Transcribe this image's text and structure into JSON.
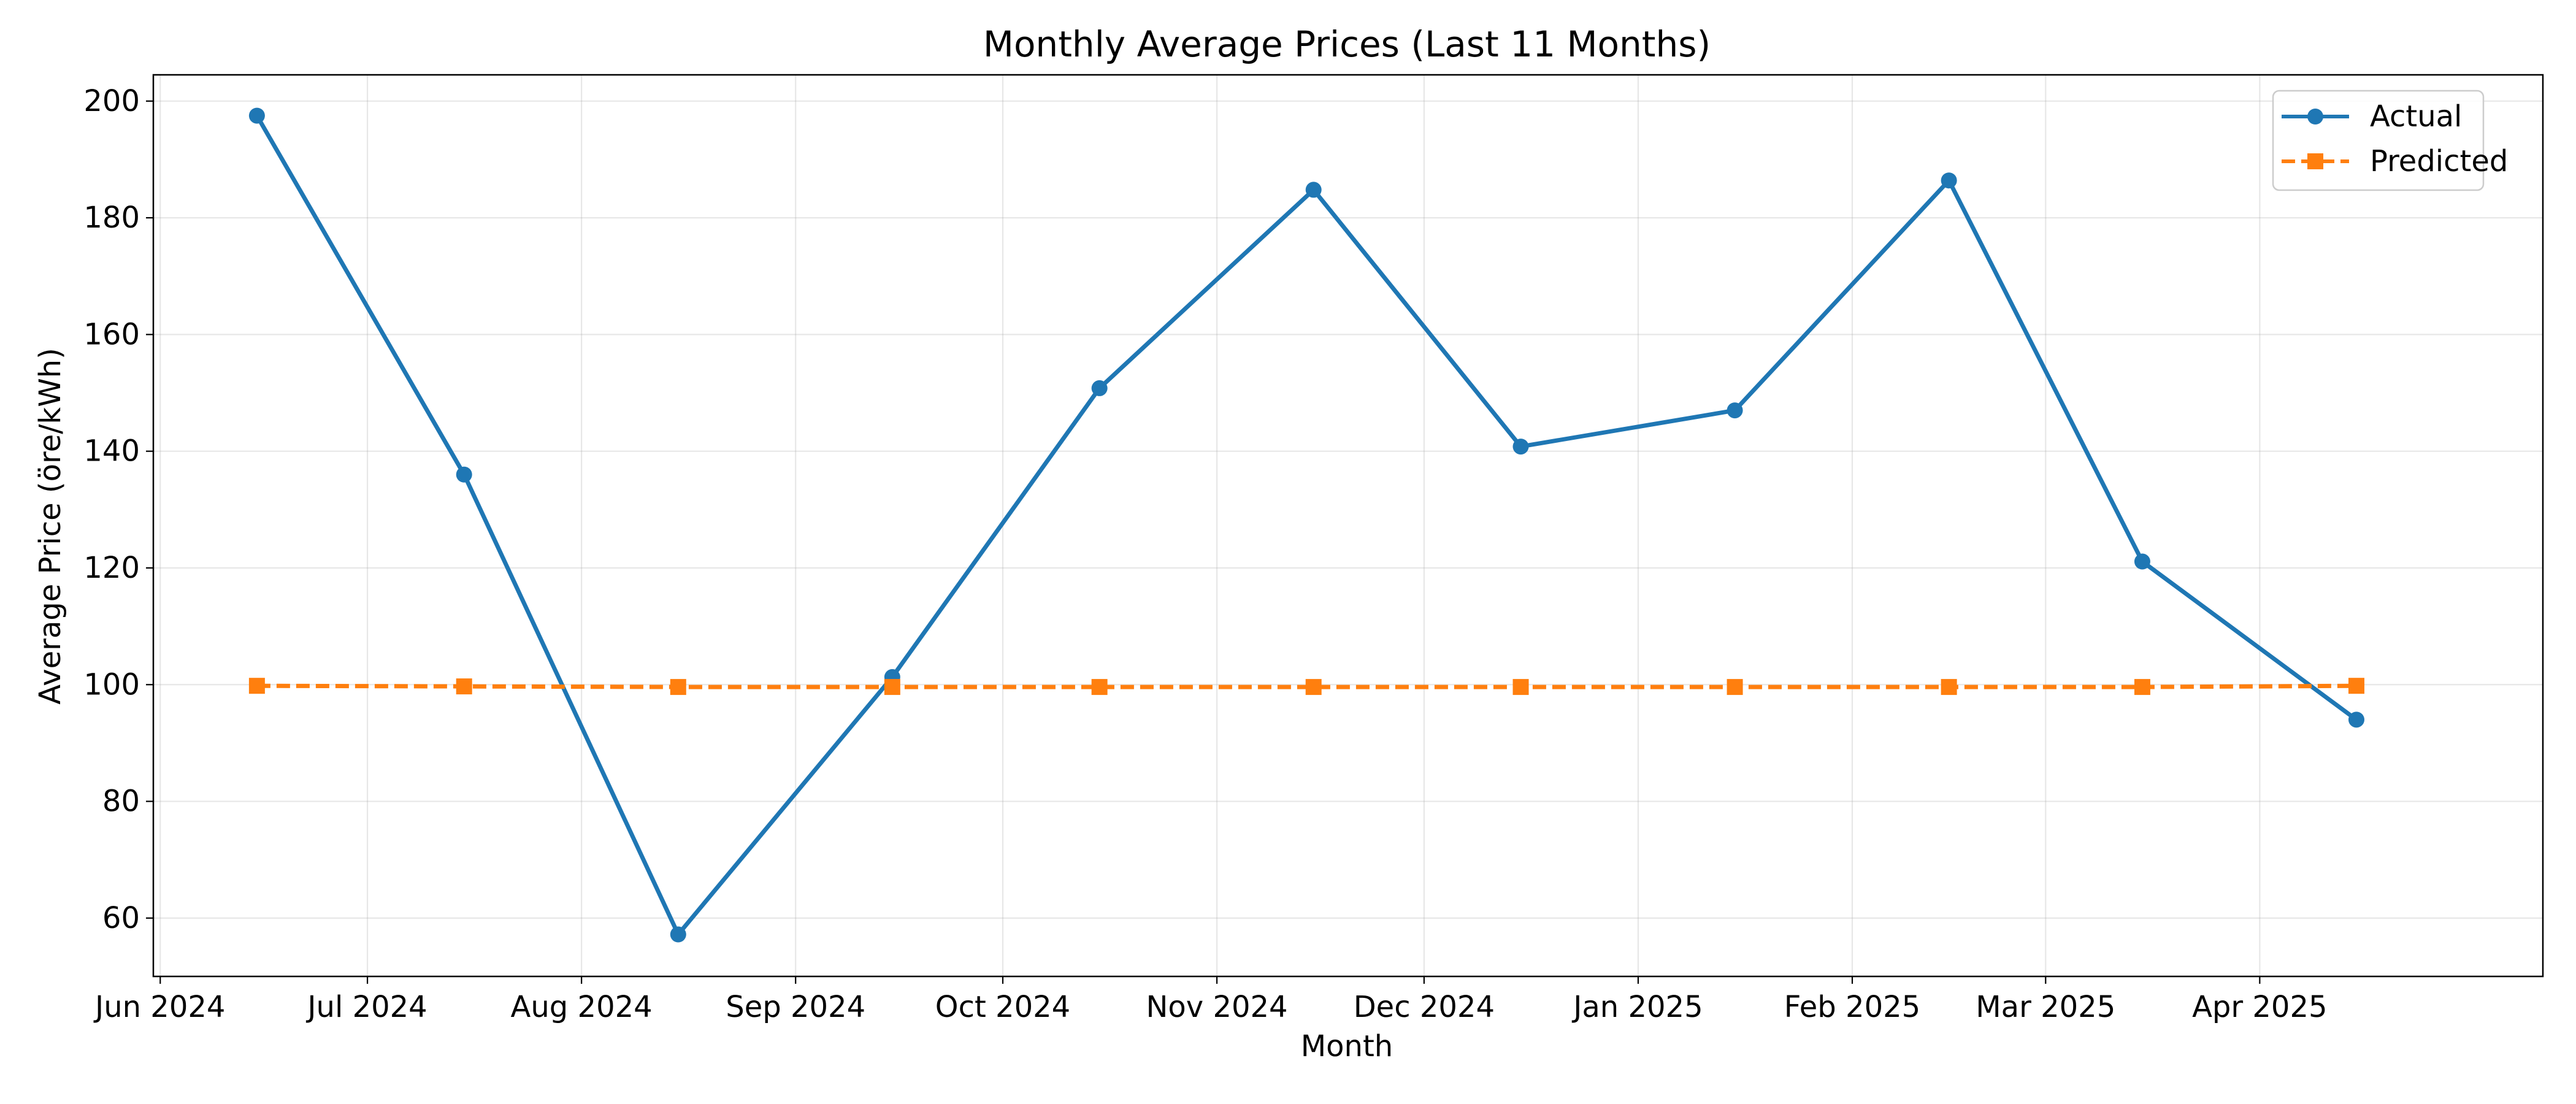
{
  "chart_data": {
    "type": "line",
    "title": "Monthly Average Prices (Last 11 Months)",
    "xlabel": "Month",
    "ylabel": "Average Price (öre/kWh)",
    "x_axis_type": "date",
    "xlim": [
      "2024-05-31",
      "2025-05-12"
    ],
    "ylim": [
      50,
      204.5
    ],
    "x_ticks": [
      {
        "date": "2024-06-01",
        "label": "Jun 2024"
      },
      {
        "date": "2024-07-01",
        "label": "Jul 2024"
      },
      {
        "date": "2024-08-01",
        "label": "Aug 2024"
      },
      {
        "date": "2024-09-01",
        "label": "Sep 2024"
      },
      {
        "date": "2024-10-01",
        "label": "Oct 2024"
      },
      {
        "date": "2024-11-01",
        "label": "Nov 2024"
      },
      {
        "date": "2024-12-01",
        "label": "Dec 2024"
      },
      {
        "date": "2025-01-01",
        "label": "Jan 2025"
      },
      {
        "date": "2025-02-01",
        "label": "Feb 2025"
      },
      {
        "date": "2025-03-01",
        "label": "Mar 2025"
      },
      {
        "date": "2025-04-01",
        "label": "Apr 2025"
      }
    ],
    "y_ticks": [
      60,
      80,
      100,
      120,
      140,
      160,
      180,
      200
    ],
    "grid": true,
    "legend_position": "top-right",
    "x": [
      "2024-06-15",
      "2024-07-15",
      "2024-08-15",
      "2024-09-15",
      "2024-10-15",
      "2024-11-15",
      "2024-12-15",
      "2025-01-15",
      "2025-02-15",
      "2025-03-15",
      "2025-04-15"
    ],
    "series": [
      {
        "name": "Actual",
        "color": "#1f77b4",
        "marker": "circle",
        "line_style": "solid",
        "values": [
          197.5,
          136.0,
          57.2,
          101.3,
          150.8,
          184.8,
          140.8,
          147.0,
          186.4,
          121.1,
          94.0
        ]
      },
      {
        "name": "Predicted",
        "color": "#ff7f0e",
        "marker": "square",
        "line_style": "dashed",
        "values": [
          99.8,
          99.7,
          99.6,
          99.6,
          99.6,
          99.6,
          99.6,
          99.6,
          99.6,
          99.6,
          99.8
        ]
      }
    ]
  }
}
